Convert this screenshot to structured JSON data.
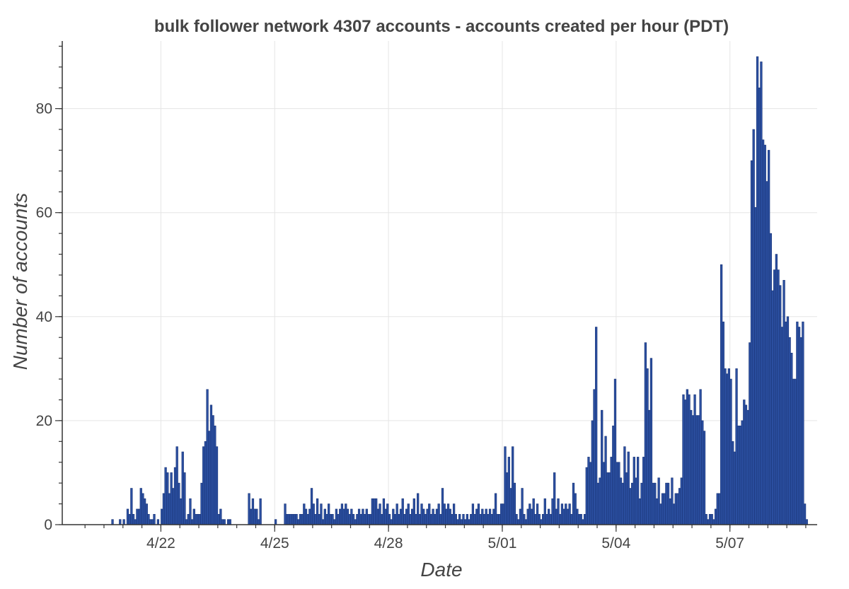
{
  "chart_data": {
    "type": "bar",
    "title": "bulk follower network 4307 accounts - accounts created per hour (PDT)",
    "xlabel": "Date",
    "ylabel": "Number of accounts",
    "x_ticks": [
      {
        "label": "4/22",
        "day": 2
      },
      {
        "label": "4/25",
        "day": 5
      },
      {
        "label": "4/28",
        "day": 8
      },
      {
        "label": "5/01",
        "day": 11
      },
      {
        "label": "5/04",
        "day": 14
      },
      {
        "label": "5/07",
        "day": 17
      }
    ],
    "y_ticks": [
      0,
      20,
      40,
      60,
      80
    ],
    "xlim_days": [
      -0.6,
      19.3
    ],
    "ylim": [
      0,
      93
    ],
    "grid": true,
    "colors": {
      "bar_fill": "#2B4FA0",
      "bar_edge": "#1A3578"
    },
    "values": [
      [
        0.7,
        1
      ],
      [
        0.9,
        1
      ],
      [
        1.0,
        1
      ],
      [
        1.1,
        3
      ],
      [
        1.15,
        2
      ],
      [
        1.2,
        7
      ],
      [
        1.25,
        2
      ],
      [
        1.3,
        1
      ],
      [
        1.35,
        3
      ],
      [
        1.4,
        3
      ],
      [
        1.45,
        7
      ],
      [
        1.5,
        6
      ],
      [
        1.55,
        5
      ],
      [
        1.6,
        4
      ],
      [
        1.65,
        2
      ],
      [
        1.7,
        1
      ],
      [
        1.75,
        1
      ],
      [
        1.8,
        2
      ],
      [
        1.9,
        1
      ],
      [
        2.0,
        3
      ],
      [
        2.05,
        6
      ],
      [
        2.1,
        11
      ],
      [
        2.15,
        10
      ],
      [
        2.2,
        6
      ],
      [
        2.25,
        10
      ],
      [
        2.3,
        7
      ],
      [
        2.35,
        11
      ],
      [
        2.4,
        15
      ],
      [
        2.45,
        8
      ],
      [
        2.5,
        5
      ],
      [
        2.55,
        14
      ],
      [
        2.6,
        10
      ],
      [
        2.65,
        1
      ],
      [
        2.7,
        2
      ],
      [
        2.75,
        5
      ],
      [
        2.8,
        1
      ],
      [
        2.85,
        3
      ],
      [
        2.9,
        2
      ],
      [
        2.95,
        2
      ],
      [
        3.0,
        2
      ],
      [
        3.05,
        8
      ],
      [
        3.1,
        15
      ],
      [
        3.15,
        16
      ],
      [
        3.2,
        26
      ],
      [
        3.25,
        18
      ],
      [
        3.3,
        23
      ],
      [
        3.35,
        21
      ],
      [
        3.4,
        19
      ],
      [
        3.45,
        15
      ],
      [
        3.5,
        2
      ],
      [
        3.55,
        3
      ],
      [
        3.6,
        1
      ],
      [
        3.65,
        1
      ],
      [
        3.75,
        1
      ],
      [
        3.8,
        1
      ],
      [
        4.3,
        6
      ],
      [
        4.35,
        3
      ],
      [
        4.4,
        5
      ],
      [
        4.45,
        3
      ],
      [
        4.5,
        3
      ],
      [
        4.55,
        1
      ],
      [
        4.6,
        5
      ],
      [
        5.0,
        1
      ],
      [
        5.25,
        4
      ],
      [
        5.3,
        2
      ],
      [
        5.35,
        2
      ],
      [
        5.4,
        2
      ],
      [
        5.45,
        2
      ],
      [
        5.5,
        2
      ],
      [
        5.55,
        2
      ],
      [
        5.6,
        1
      ],
      [
        5.65,
        2
      ],
      [
        5.7,
        2
      ],
      [
        5.75,
        4
      ],
      [
        5.8,
        3
      ],
      [
        5.85,
        2
      ],
      [
        5.9,
        3
      ],
      [
        5.95,
        7
      ],
      [
        6.0,
        4
      ],
      [
        6.05,
        2
      ],
      [
        6.1,
        5
      ],
      [
        6.15,
        2
      ],
      [
        6.2,
        4
      ],
      [
        6.25,
        1
      ],
      [
        6.3,
        3
      ],
      [
        6.35,
        2
      ],
      [
        6.4,
        4
      ],
      [
        6.45,
        2
      ],
      [
        6.5,
        2
      ],
      [
        6.55,
        1
      ],
      [
        6.6,
        3
      ],
      [
        6.65,
        2
      ],
      [
        6.7,
        3
      ],
      [
        6.75,
        4
      ],
      [
        6.8,
        3
      ],
      [
        6.85,
        4
      ],
      [
        6.9,
        3
      ],
      [
        6.95,
        2
      ],
      [
        7.0,
        3
      ],
      [
        7.05,
        2
      ],
      [
        7.1,
        1
      ],
      [
        7.15,
        2
      ],
      [
        7.2,
        3
      ],
      [
        7.25,
        2
      ],
      [
        7.3,
        3
      ],
      [
        7.35,
        2
      ],
      [
        7.4,
        3
      ],
      [
        7.45,
        2
      ],
      [
        7.5,
        2
      ],
      [
        7.55,
        5
      ],
      [
        7.6,
        5
      ],
      [
        7.65,
        5
      ],
      [
        7.7,
        3
      ],
      [
        7.75,
        4
      ],
      [
        7.8,
        2
      ],
      [
        7.85,
        5
      ],
      [
        7.9,
        3
      ],
      [
        7.95,
        4
      ],
      [
        8.0,
        2
      ],
      [
        8.05,
        1
      ],
      [
        8.1,
        3
      ],
      [
        8.15,
        2
      ],
      [
        8.2,
        4
      ],
      [
        8.25,
        2
      ],
      [
        8.3,
        3
      ],
      [
        8.35,
        5
      ],
      [
        8.4,
        2
      ],
      [
        8.45,
        3
      ],
      [
        8.5,
        4
      ],
      [
        8.55,
        2
      ],
      [
        8.6,
        3
      ],
      [
        8.65,
        5
      ],
      [
        8.7,
        2
      ],
      [
        8.75,
        6
      ],
      [
        8.8,
        2
      ],
      [
        8.85,
        4
      ],
      [
        8.9,
        3
      ],
      [
        8.95,
        2
      ],
      [
        9.0,
        3
      ],
      [
        9.05,
        4
      ],
      [
        9.1,
        2
      ],
      [
        9.15,
        3
      ],
      [
        9.2,
        2
      ],
      [
        9.25,
        3
      ],
      [
        9.3,
        4
      ],
      [
        9.35,
        2
      ],
      [
        9.4,
        7
      ],
      [
        9.45,
        4
      ],
      [
        9.5,
        3
      ],
      [
        9.55,
        4
      ],
      [
        9.6,
        3
      ],
      [
        9.65,
        2
      ],
      [
        9.7,
        4
      ],
      [
        9.75,
        2
      ],
      [
        9.8,
        1
      ],
      [
        9.85,
        2
      ],
      [
        9.9,
        1
      ],
      [
        9.95,
        2
      ],
      [
        10.0,
        1
      ],
      [
        10.05,
        2
      ],
      [
        10.1,
        1
      ],
      [
        10.15,
        2
      ],
      [
        10.2,
        4
      ],
      [
        10.25,
        2
      ],
      [
        10.3,
        3
      ],
      [
        10.35,
        4
      ],
      [
        10.4,
        2
      ],
      [
        10.45,
        3
      ],
      [
        10.5,
        2
      ],
      [
        10.55,
        3
      ],
      [
        10.6,
        2
      ],
      [
        10.65,
        3
      ],
      [
        10.7,
        2
      ],
      [
        10.75,
        3
      ],
      [
        10.8,
        6
      ],
      [
        10.85,
        2
      ],
      [
        10.9,
        2
      ],
      [
        10.95,
        4
      ],
      [
        11.0,
        4
      ],
      [
        11.05,
        15
      ],
      [
        11.1,
        10
      ],
      [
        11.15,
        13
      ],
      [
        11.2,
        7
      ],
      [
        11.25,
        15
      ],
      [
        11.3,
        8
      ],
      [
        11.35,
        2
      ],
      [
        11.4,
        1
      ],
      [
        11.45,
        3
      ],
      [
        11.5,
        7
      ],
      [
        11.55,
        2
      ],
      [
        11.6,
        1
      ],
      [
        11.65,
        3
      ],
      [
        11.7,
        4
      ],
      [
        11.75,
        3
      ],
      [
        11.8,
        5
      ],
      [
        11.85,
        2
      ],
      [
        11.9,
        4
      ],
      [
        11.95,
        2
      ],
      [
        12.0,
        1
      ],
      [
        12.05,
        2
      ],
      [
        12.1,
        5
      ],
      [
        12.15,
        2
      ],
      [
        12.2,
        3
      ],
      [
        12.25,
        2
      ],
      [
        12.3,
        5
      ],
      [
        12.35,
        10
      ],
      [
        12.4,
        3
      ],
      [
        12.45,
        5
      ],
      [
        12.5,
        2
      ],
      [
        12.55,
        4
      ],
      [
        12.6,
        3
      ],
      [
        12.65,
        4
      ],
      [
        12.7,
        3
      ],
      [
        12.75,
        4
      ],
      [
        12.8,
        2
      ],
      [
        12.85,
        8
      ],
      [
        12.9,
        6
      ],
      [
        12.95,
        3
      ],
      [
        13.0,
        2
      ],
      [
        13.05,
        2
      ],
      [
        13.1,
        1
      ],
      [
        13.15,
        2
      ],
      [
        13.2,
        11
      ],
      [
        13.25,
        13
      ],
      [
        13.3,
        12
      ],
      [
        13.35,
        20
      ],
      [
        13.4,
        26
      ],
      [
        13.45,
        38
      ],
      [
        13.5,
        8
      ],
      [
        13.55,
        9
      ],
      [
        13.6,
        22
      ],
      [
        13.65,
        12
      ],
      [
        13.7,
        17
      ],
      [
        13.75,
        10
      ],
      [
        13.8,
        10
      ],
      [
        13.85,
        13
      ],
      [
        13.9,
        19
      ],
      [
        13.95,
        28
      ],
      [
        14.0,
        12
      ],
      [
        14.05,
        12
      ],
      [
        14.1,
        9
      ],
      [
        14.15,
        8
      ],
      [
        14.2,
        15
      ],
      [
        14.25,
        10
      ],
      [
        14.3,
        14
      ],
      [
        14.35,
        7
      ],
      [
        14.4,
        8
      ],
      [
        14.45,
        13
      ],
      [
        14.5,
        9
      ],
      [
        14.55,
        13
      ],
      [
        14.6,
        5
      ],
      [
        14.65,
        8
      ],
      [
        14.7,
        13
      ],
      [
        14.75,
        35
      ],
      [
        14.8,
        30
      ],
      [
        14.85,
        22
      ],
      [
        14.9,
        32
      ],
      [
        14.95,
        8
      ],
      [
        15.0,
        8
      ],
      [
        15.05,
        5
      ],
      [
        15.1,
        9
      ],
      [
        15.15,
        4
      ],
      [
        15.2,
        6
      ],
      [
        15.25,
        6
      ],
      [
        15.3,
        8
      ],
      [
        15.35,
        8
      ],
      [
        15.4,
        5
      ],
      [
        15.45,
        9
      ],
      [
        15.5,
        4
      ],
      [
        15.55,
        6
      ],
      [
        15.6,
        6
      ],
      [
        15.65,
        7
      ],
      [
        15.7,
        9
      ],
      [
        15.75,
        25
      ],
      [
        15.8,
        24
      ],
      [
        15.85,
        26
      ],
      [
        15.9,
        25
      ],
      [
        15.95,
        22
      ],
      [
        16.0,
        21
      ],
      [
        16.05,
        25
      ],
      [
        16.1,
        21
      ],
      [
        16.15,
        21
      ],
      [
        16.2,
        26
      ],
      [
        16.25,
        20
      ],
      [
        16.3,
        18
      ],
      [
        16.35,
        2
      ],
      [
        16.4,
        1
      ],
      [
        16.45,
        2
      ],
      [
        16.5,
        2
      ],
      [
        16.55,
        1
      ],
      [
        16.6,
        3
      ],
      [
        16.65,
        6
      ],
      [
        16.7,
        6
      ],
      [
        16.75,
        50
      ],
      [
        16.8,
        39
      ],
      [
        16.85,
        30
      ],
      [
        16.9,
        29
      ],
      [
        16.95,
        30
      ],
      [
        17.0,
        28
      ],
      [
        17.05,
        16
      ],
      [
        17.1,
        14
      ],
      [
        17.15,
        30
      ],
      [
        17.2,
        19
      ],
      [
        17.25,
        19
      ],
      [
        17.3,
        20
      ],
      [
        17.35,
        24
      ],
      [
        17.4,
        23
      ],
      [
        17.45,
        22
      ],
      [
        17.5,
        35
      ],
      [
        17.55,
        70
      ],
      [
        17.6,
        76
      ],
      [
        17.65,
        61
      ],
      [
        17.7,
        90
      ],
      [
        17.75,
        84
      ],
      [
        17.8,
        89
      ],
      [
        17.85,
        74
      ],
      [
        17.9,
        73
      ],
      [
        17.95,
        66
      ],
      [
        18.0,
        72
      ],
      [
        18.05,
        56
      ],
      [
        18.1,
        45
      ],
      [
        18.15,
        49
      ],
      [
        18.2,
        52
      ],
      [
        18.25,
        49
      ],
      [
        18.3,
        46
      ],
      [
        18.35,
        38
      ],
      [
        18.4,
        47
      ],
      [
        18.45,
        39
      ],
      [
        18.5,
        40
      ],
      [
        18.55,
        36
      ],
      [
        18.6,
        33
      ],
      [
        18.65,
        28
      ],
      [
        18.7,
        28
      ],
      [
        18.75,
        39
      ],
      [
        18.8,
        38
      ],
      [
        18.85,
        36
      ],
      [
        18.9,
        39
      ],
      [
        18.95,
        4
      ],
      [
        19.0,
        1
      ]
    ]
  }
}
